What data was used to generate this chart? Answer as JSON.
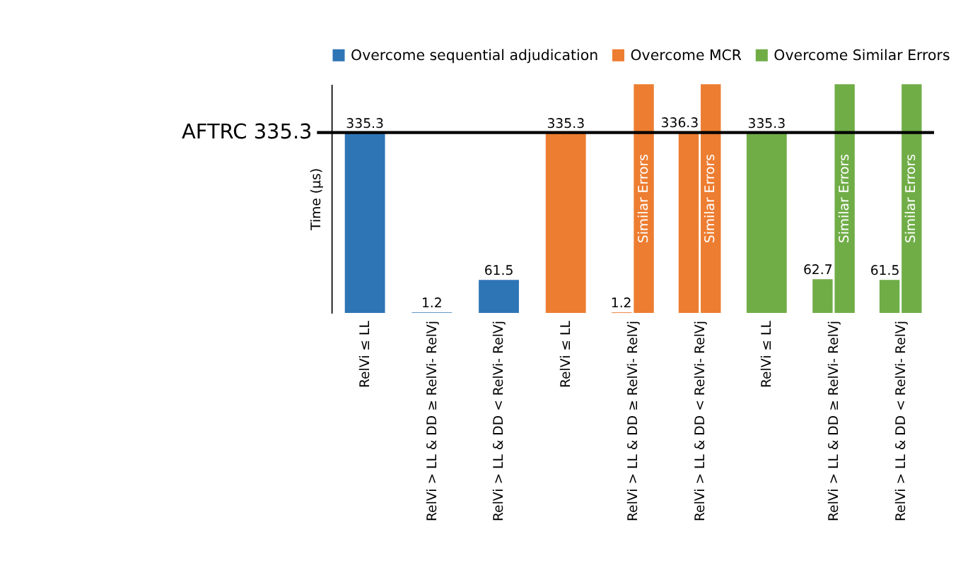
{
  "chart_data": {
    "type": "bar",
    "ylabel": "Time (µs)",
    "categories": [
      "RelVi ≤ LL",
      "RelVi > LL & DD ≥ RelVi- RelVj",
      "RelVi > LL & DD < RelVi- RelVj",
      "RelVi ≤ LL",
      "RelVi > LL & DD ≥ RelVi- RelVj",
      "RelVi > LL & DD < RelVi- RelVj",
      "RelVi ≤ LL",
      "RelVi > LL & DD ≥ RelVi- RelVj",
      "RelVi > LL & DD < RelVi- RelVj"
    ],
    "series": [
      {
        "name": "Overcome sequential adjudication",
        "color": "#2e75b6",
        "values": [
          335.3,
          1.2,
          61.5,
          null,
          null,
          null,
          null,
          null,
          null
        ]
      },
      {
        "name": "Overcome MCR",
        "color": "#ed7d31",
        "values": [
          null,
          null,
          null,
          335.3,
          1.2,
          336.3,
          null,
          null,
          null
        ]
      },
      {
        "name": "Overcome Similar Errors",
        "color": "#70ad47",
        "values": [
          null,
          null,
          null,
          null,
          null,
          null,
          335.3,
          62.7,
          61.5
        ]
      },
      {
        "color": "#ed7d31",
        "values": [
          null,
          null,
          null,
          null,
          425,
          425,
          null,
          null,
          null
        ],
        "value_labels": [
          null,
          null,
          null,
          null,
          "Similar Errors",
          "Similar Errors",
          null,
          null,
          null
        ]
      },
      {
        "color": "#70ad47",
        "values": [
          null,
          null,
          null,
          null,
          null,
          null,
          null,
          425,
          425
        ],
        "value_labels": [
          null,
          null,
          null,
          null,
          null,
          null,
          null,
          "Similar Errors",
          "Similar Errors"
        ]
      }
    ],
    "ylim": [
      0,
      425
    ],
    "data_labels": true,
    "legend": "top",
    "tick_labels": "x",
    "ref_lines": [
      {
        "axis": "y",
        "value": 335.3,
        "label": "AFTRC 335.3",
        "color": "#000000"
      }
    ]
  }
}
